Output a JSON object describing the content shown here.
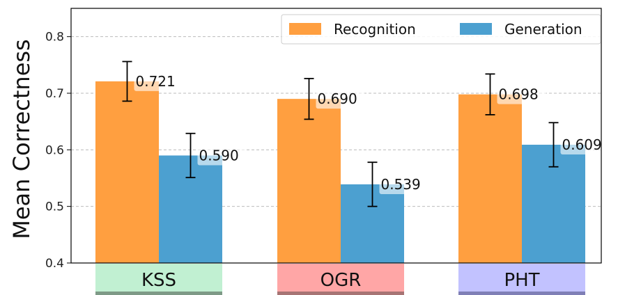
{
  "chart_data": {
    "type": "bar",
    "title": "",
    "xlabel": "",
    "ylabel": "Mean Correctness",
    "ylim": [
      0.4,
      0.85
    ],
    "yticks": [
      "0.4",
      "0.5",
      "0.6",
      "0.7",
      "0.8"
    ],
    "grid": true,
    "legend_position": "top-right",
    "categories": [
      "KSS",
      "OGR",
      "PHT"
    ],
    "category_colors": [
      "#c1f0d2",
      "#ffa6a6",
      "#c2c2ff"
    ],
    "category_underline_colors": [
      "#7e9a87",
      "#a77474",
      "#7f7fb6"
    ],
    "series": [
      {
        "name": "Recognition",
        "color": "#ff9f40",
        "values": [
          0.721,
          0.69,
          0.698
        ],
        "labels": [
          "0.721",
          "0.690",
          "0.698"
        ],
        "error": [
          0.035,
          0.036,
          0.036
        ]
      },
      {
        "name": "Generation",
        "color": "#4ca0d0",
        "values": [
          0.59,
          0.539,
          0.609
        ],
        "labels": [
          "0.590",
          "0.539",
          "0.609"
        ],
        "error": [
          0.039,
          0.039,
          0.039
        ]
      }
    ]
  }
}
